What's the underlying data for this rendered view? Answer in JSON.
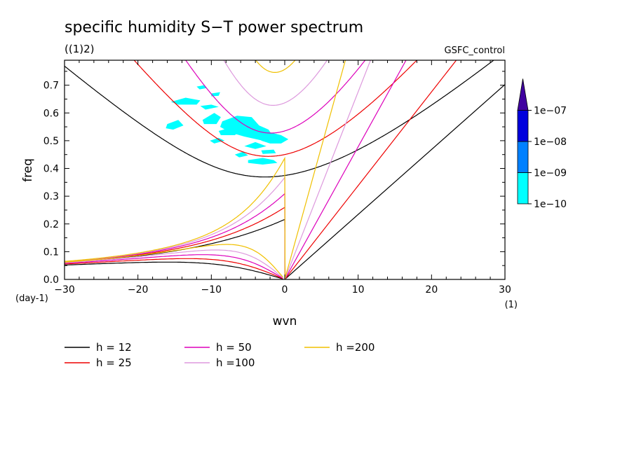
{
  "chart_data": {
    "type": "line",
    "title": "specific humidity S−T power spectrum",
    "subtitle": "((1)2)",
    "run_label": "GSFC_control",
    "xlabel": "wvn",
    "ylabel": "freq",
    "x_unit": "(1)",
    "y_unit": "(day-1)",
    "xlim": [
      -30,
      30
    ],
    "ylim": [
      0.0,
      0.79
    ],
    "x_ticks": [
      -30,
      -20,
      -10,
      0,
      10,
      20,
      30
    ],
    "x_tick_labels": [
      "−30",
      "−20",
      "−10",
      "0",
      "10",
      "20",
      "30"
    ],
    "y_ticks": [
      0.0,
      0.1,
      0.2,
      0.3,
      0.4,
      0.5,
      0.6,
      0.7
    ],
    "y_tick_labels": [
      "0.0",
      "0.1",
      "0.2",
      "0.3",
      "0.4",
      "0.5",
      "0.6",
      "0.7"
    ],
    "grid": false,
    "legend_position": "bottom",
    "series": [
      {
        "name": "h = 12",
        "h": 12,
        "color": "#000000"
      },
      {
        "name": "h = 25",
        "h": 25,
        "color": "#ee0000"
      },
      {
        "name": "h = 50",
        "h": 50,
        "color": "#dd00bb"
      },
      {
        "name": "h =100",
        "h": 100,
        "color": "#dd99dd"
      },
      {
        "name": "h =200",
        "h": 200,
        "color": "#f0c000"
      }
    ],
    "colorbar": {
      "levels": [
        "1e−10",
        "1e−09",
        "1e−08",
        "1e−07"
      ],
      "colors": [
        "#00ffff",
        "#0080ff",
        "#0000dd",
        "#4000a0"
      ]
    },
    "shaded_regions": [
      {
        "level": "1e−10",
        "points": [
          [
            -15.5,
            0.64
          ],
          [
            -13.5,
            0.655
          ],
          [
            -11.5,
            0.645
          ],
          [
            -12,
            0.63
          ],
          [
            -14.5,
            0.63
          ]
        ]
      },
      {
        "level": "1e−10",
        "points": [
          [
            -12,
            0.695
          ],
          [
            -11,
            0.7
          ],
          [
            -10.6,
            0.69
          ],
          [
            -11.6,
            0.685
          ]
        ]
      },
      {
        "level": "1e−10",
        "points": [
          [
            -10,
            0.67
          ],
          [
            -8.8,
            0.675
          ],
          [
            -9,
            0.662
          ],
          [
            -10,
            0.66
          ]
        ]
      },
      {
        "level": "1e−10",
        "points": [
          [
            -11.5,
            0.625
          ],
          [
            -10,
            0.63
          ],
          [
            -9,
            0.622
          ],
          [
            -10.8,
            0.612
          ]
        ]
      },
      {
        "level": "1e−10",
        "points": [
          [
            -16,
            0.56
          ],
          [
            -14.5,
            0.575
          ],
          [
            -13.8,
            0.555
          ],
          [
            -15.2,
            0.54
          ],
          [
            -16.2,
            0.545
          ]
        ]
      },
      {
        "level": "1e−10",
        "points": [
          [
            -11.2,
            0.575
          ],
          [
            -9.6,
            0.6
          ],
          [
            -8.7,
            0.585
          ],
          [
            -9.3,
            0.56
          ],
          [
            -11,
            0.56
          ]
        ]
      },
      {
        "level": "1e−10",
        "points": [
          [
            -9,
            0.535
          ],
          [
            -7,
            0.55
          ],
          [
            -6,
            0.535
          ],
          [
            -6.8,
            0.52
          ],
          [
            -8.7,
            0.52
          ]
        ]
      },
      {
        "level": "1e−10",
        "points": [
          [
            -8.5,
            0.57
          ],
          [
            -6.5,
            0.59
          ],
          [
            -4.5,
            0.585
          ],
          [
            -3.5,
            0.555
          ],
          [
            -2.2,
            0.54
          ],
          [
            -1.5,
            0.51
          ],
          [
            -3,
            0.5
          ],
          [
            -5.5,
            0.515
          ],
          [
            -7.5,
            0.53
          ],
          [
            -8.8,
            0.55
          ]
        ]
      },
      {
        "level": "1e−10",
        "points": [
          [
            -3,
            0.52
          ],
          [
            -2,
            0.53
          ],
          [
            -0.5,
            0.52
          ],
          [
            0.5,
            0.505
          ],
          [
            -0.5,
            0.49
          ],
          [
            -2,
            0.49
          ],
          [
            -3.2,
            0.5
          ]
        ]
      },
      {
        "level": "1e−10",
        "points": [
          [
            -10.2,
            0.5
          ],
          [
            -9,
            0.51
          ],
          [
            -8.2,
            0.5
          ],
          [
            -9.6,
            0.49
          ]
        ]
      },
      {
        "level": "1e−10",
        "points": [
          [
            -5.5,
            0.48
          ],
          [
            -4,
            0.495
          ],
          [
            -2.5,
            0.48
          ],
          [
            -4,
            0.47
          ]
        ]
      },
      {
        "level": "1e−10",
        "points": [
          [
            -6.8,
            0.45
          ],
          [
            -5.7,
            0.46
          ],
          [
            -5,
            0.447
          ],
          [
            -6.2,
            0.44
          ]
        ]
      },
      {
        "level": "1e−10",
        "points": [
          [
            -5,
            0.43
          ],
          [
            -3,
            0.438
          ],
          [
            -1.5,
            0.43
          ],
          [
            -1,
            0.42
          ],
          [
            -3,
            0.414
          ],
          [
            -5,
            0.42
          ]
        ]
      },
      {
        "level": "1e−10",
        "points": [
          [
            -3.2,
            0.465
          ],
          [
            -1.5,
            0.468
          ],
          [
            -1.2,
            0.455
          ],
          [
            -3,
            0.452
          ]
        ]
      }
    ]
  }
}
